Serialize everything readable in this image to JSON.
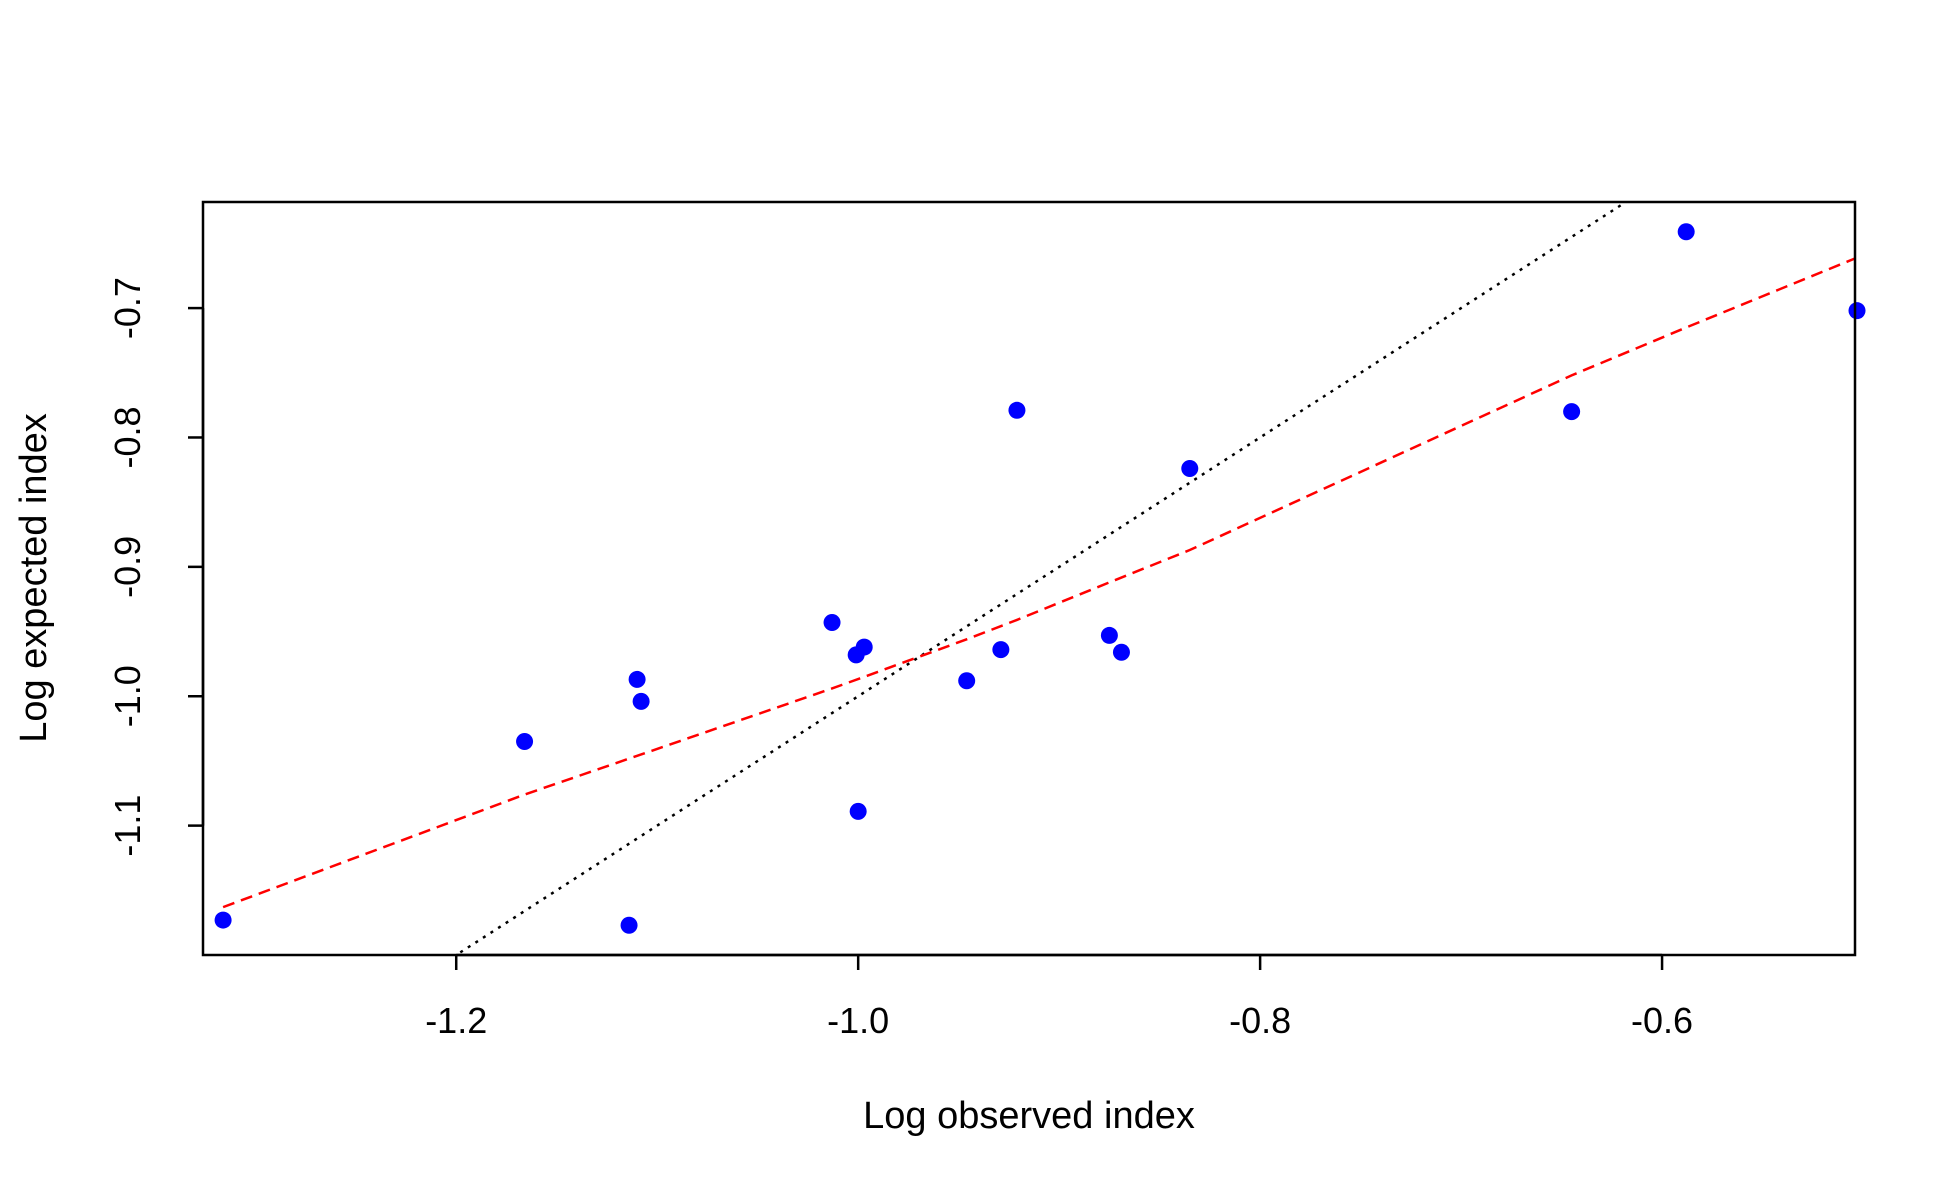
{
  "chart_data": {
    "type": "scatter",
    "title": "",
    "xlabel": "Log observed index",
    "ylabel": "Log expected index",
    "xlim": [
      -1.326,
      -0.504
    ],
    "ylim": [
      -1.2,
      -0.618
    ],
    "xticks": [
      -1.2,
      -1.0,
      -0.8,
      -0.6
    ],
    "xtick_labels": [
      "-1.2",
      "-1.0",
      "-0.8",
      "-0.6"
    ],
    "yticks": [
      -1.1,
      -1.0,
      -0.9,
      -0.8,
      -0.7
    ],
    "ytick_labels": [
      "-1.1",
      "-1.0",
      "-0.9",
      "-0.8",
      "-0.7"
    ],
    "grid": false,
    "legend": "none",
    "point_color": "#0000ff",
    "points": [
      {
        "x": -1.316,
        "y": -1.173
      },
      {
        "x": -1.166,
        "y": -1.035
      },
      {
        "x": -1.11,
        "y": -0.987
      },
      {
        "x": -1.108,
        "y": -1.004
      },
      {
        "x": -1.114,
        "y": -1.177
      },
      {
        "x": -1.013,
        "y": -0.943
      },
      {
        "x": -1.001,
        "y": -0.968
      },
      {
        "x": -0.997,
        "y": -0.962
      },
      {
        "x": -1.0,
        "y": -1.089
      },
      {
        "x": -0.946,
        "y": -0.988
      },
      {
        "x": -0.929,
        "y": -0.964
      },
      {
        "x": -0.921,
        "y": -0.779
      },
      {
        "x": -0.875,
        "y": -0.953
      },
      {
        "x": -0.869,
        "y": -0.966
      },
      {
        "x": -0.835,
        "y": -0.824
      },
      {
        "x": -0.645,
        "y": -0.78
      },
      {
        "x": -0.588,
        "y": -0.641
      },
      {
        "x": -0.503,
        "y": -0.702
      }
    ],
    "reference_line": {
      "style": "dotted",
      "color": "#000000",
      "slope": 1,
      "intercept": 0
    },
    "smooth_line": {
      "style": "dashed",
      "color": "#ff0000",
      "x": [
        -1.316,
        -1.166,
        -1.108,
        -1.013,
        -0.997,
        -0.946,
        -0.921,
        -0.875,
        -0.835,
        -0.645,
        -0.588,
        -0.503
      ],
      "y": [
        -1.163,
        -1.076,
        -1.045,
        -0.994,
        -0.985,
        -0.956,
        -0.941,
        -0.912,
        -0.887,
        -0.752,
        -0.715,
        -0.661
      ]
    }
  }
}
